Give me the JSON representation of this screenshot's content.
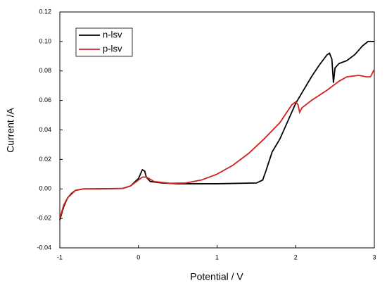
{
  "chart_data": {
    "type": "line",
    "xlabel": "Potential / V",
    "ylabel": "Current /A",
    "xlim": [
      -1,
      3
    ],
    "xticks": [
      -1,
      0,
      1,
      2,
      3
    ],
    "ylim": [
      -0.04,
      0.12
    ],
    "yticks": [
      -0.04,
      -0.02,
      {
        "value": 0,
        "label": "0.00"
      },
      0.02,
      0.04,
      0.06,
      0.08,
      {
        "value": 0.1,
        "label": "0.10"
      },
      0.12
    ],
    "legend": "upper left",
    "series": [
      {
        "name": "n-lsv",
        "color": "#000000",
        "x": [
          -1,
          -0.95,
          -0.9,
          -0.85,
          -0.8,
          -0.7,
          -0.5,
          -0.2,
          -0.1,
          0,
          0.05,
          0.08,
          0.1,
          0.15,
          0.3,
          0.5,
          1.0,
          1.5,
          1.58,
          1.62,
          1.7,
          1.8,
          1.9,
          2.0,
          2.1,
          2.2,
          2.3,
          2.4,
          2.43,
          2.46,
          2.48,
          2.5,
          2.55,
          2.65,
          2.75,
          2.85,
          2.92,
          3.0
        ],
        "values": [
          -0.021,
          -0.012,
          -0.006,
          -0.003,
          -0.001,
          0,
          0,
          0.0003,
          0.002,
          0.007,
          0.013,
          0.012,
          0.008,
          0.005,
          0.004,
          0.0035,
          0.0035,
          0.004,
          0.006,
          0.012,
          0.025,
          0.034,
          0.046,
          0.058,
          0.067,
          0.076,
          0.084,
          0.091,
          0.092,
          0.088,
          0.072,
          0.082,
          0.085,
          0.087,
          0.091,
          0.097,
          0.1,
          0.1
        ]
      },
      {
        "name": "p-lsv",
        "color": "#d42020",
        "x": [
          -1,
          -0.95,
          -0.9,
          -0.8,
          -0.7,
          -0.2,
          -0.1,
          0,
          0.05,
          0.1,
          0.2,
          0.4,
          0.6,
          0.8,
          1.0,
          1.2,
          1.4,
          1.6,
          1.8,
          1.95,
          2.0,
          2.03,
          2.05,
          2.08,
          2.2,
          2.4,
          2.55,
          2.65,
          2.8,
          2.9,
          2.95,
          3.0
        ],
        "values": [
          -0.02,
          -0.011,
          -0.006,
          -0.001,
          0,
          0.0003,
          0.002,
          0.006,
          0.008,
          0.008,
          0.005,
          0.0038,
          0.004,
          0.006,
          0.01,
          0.016,
          0.024,
          0.034,
          0.045,
          0.057,
          0.059,
          0.057,
          0.052,
          0.055,
          0.06,
          0.067,
          0.073,
          0.076,
          0.077,
          0.076,
          0.076,
          0.081
        ]
      }
    ]
  }
}
